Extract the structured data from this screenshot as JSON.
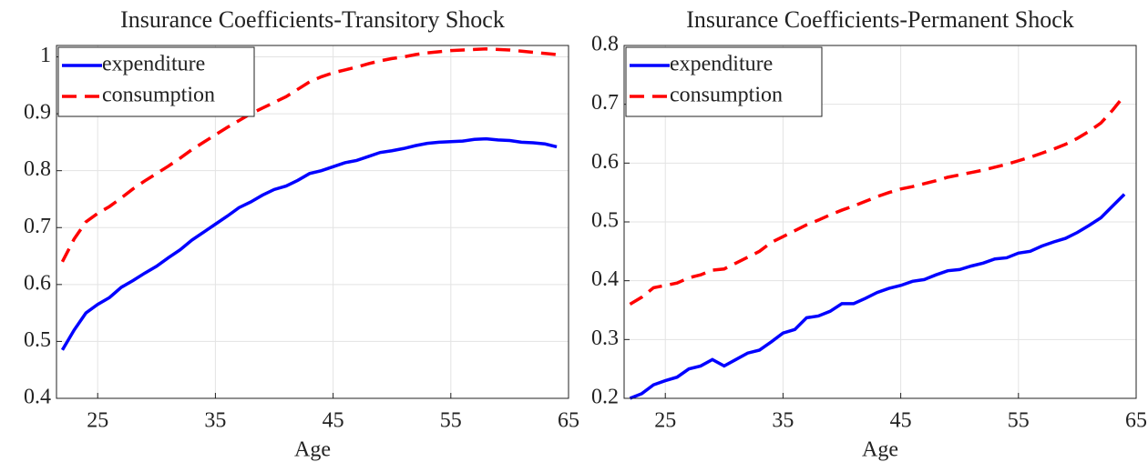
{
  "chart_data": [
    {
      "type": "line",
      "title": "Insurance Coefficients-Transitory Shock",
      "x_label": "Age",
      "x": [
        22,
        23,
        24,
        25,
        26,
        27,
        28,
        29,
        30,
        31,
        32,
        33,
        34,
        35,
        36,
        37,
        38,
        39,
        40,
        41,
        42,
        43,
        44,
        45,
        46,
        47,
        48,
        49,
        50,
        51,
        52,
        53,
        54,
        55,
        56,
        57,
        58,
        59,
        60,
        61,
        62,
        63,
        64
      ],
      "xlim": [
        21.5,
        65
      ],
      "xticks": [
        25,
        35,
        45,
        55,
        65
      ],
      "ylim": [
        0.4,
        1.02
      ],
      "yticks": [
        0.4,
        0.5,
        0.6,
        0.7,
        0.8,
        0.9,
        1
      ],
      "grid": true,
      "legend": "upper left",
      "series": [
        {
          "name": "expenditure",
          "color": "#0000ff",
          "style": "solid",
          "values": [
            0.485,
            0.52,
            0.55,
            0.565,
            0.577,
            0.595,
            0.607,
            0.62,
            0.632,
            0.647,
            0.661,
            0.678,
            0.692,
            0.706,
            0.72,
            0.735,
            0.745,
            0.757,
            0.767,
            0.773,
            0.783,
            0.795,
            0.8,
            0.807,
            0.814,
            0.818,
            0.825,
            0.832,
            0.835,
            0.839,
            0.844,
            0.848,
            0.85,
            0.851,
            0.852,
            0.855,
            0.856,
            0.854,
            0.853,
            0.85,
            0.849,
            0.847,
            0.842
          ]
        },
        {
          "name": "consumption",
          "color": "#ff0000",
          "style": "dashed",
          "values": [
            0.64,
            0.68,
            0.71,
            0.725,
            0.737,
            0.752,
            0.768,
            0.782,
            0.795,
            0.808,
            0.822,
            0.837,
            0.85,
            0.863,
            0.876,
            0.888,
            0.9,
            0.91,
            0.92,
            0.93,
            0.943,
            0.956,
            0.965,
            0.972,
            0.977,
            0.982,
            0.988,
            0.993,
            0.997,
            1.0,
            1.004,
            1.007,
            1.009,
            1.011,
            1.012,
            1.013,
            1.014,
            1.013,
            1.012,
            1.01,
            1.008,
            1.006,
            1.004
          ]
        }
      ]
    },
    {
      "type": "line",
      "title": "Insurance Coefficients-Permanent Shock",
      "x_label": "Age",
      "x": [
        22,
        23,
        24,
        25,
        26,
        27,
        28,
        29,
        30,
        31,
        32,
        33,
        34,
        35,
        36,
        37,
        38,
        39,
        40,
        41,
        42,
        43,
        44,
        45,
        46,
        47,
        48,
        49,
        50,
        51,
        52,
        53,
        54,
        55,
        56,
        57,
        58,
        59,
        60,
        61,
        62,
        63,
        64
      ],
      "xlim": [
        21.5,
        65
      ],
      "xticks": [
        25,
        35,
        45,
        55,
        65
      ],
      "ylim": [
        0.2,
        0.8
      ],
      "yticks": [
        0.2,
        0.3,
        0.4,
        0.5,
        0.6,
        0.7,
        0.8
      ],
      "grid": true,
      "legend": "upper left",
      "series": [
        {
          "name": "expenditure",
          "color": "#0000ff",
          "style": "solid",
          "values": [
            0.2,
            0.208,
            0.223,
            0.23,
            0.236,
            0.25,
            0.255,
            0.266,
            0.255,
            0.266,
            0.277,
            0.282,
            0.296,
            0.311,
            0.317,
            0.337,
            0.34,
            0.348,
            0.361,
            0.361,
            0.37,
            0.38,
            0.387,
            0.392,
            0.399,
            0.402,
            0.41,
            0.417,
            0.419,
            0.425,
            0.43,
            0.437,
            0.439,
            0.447,
            0.45,
            0.459,
            0.466,
            0.472,
            0.482,
            0.494,
            0.507,
            0.527,
            0.547
          ]
        },
        {
          "name": "consumption",
          "color": "#ff0000",
          "style": "dashed",
          "values": [
            0.36,
            0.372,
            0.388,
            0.392,
            0.396,
            0.405,
            0.41,
            0.418,
            0.42,
            0.43,
            0.44,
            0.45,
            0.465,
            0.475,
            0.485,
            0.495,
            0.503,
            0.512,
            0.52,
            0.527,
            0.535,
            0.543,
            0.55,
            0.556,
            0.56,
            0.565,
            0.57,
            0.576,
            0.58,
            0.584,
            0.588,
            0.593,
            0.598,
            0.604,
            0.61,
            0.617,
            0.624,
            0.632,
            0.642,
            0.654,
            0.668,
            0.69,
            0.715
          ]
        }
      ]
    }
  ]
}
